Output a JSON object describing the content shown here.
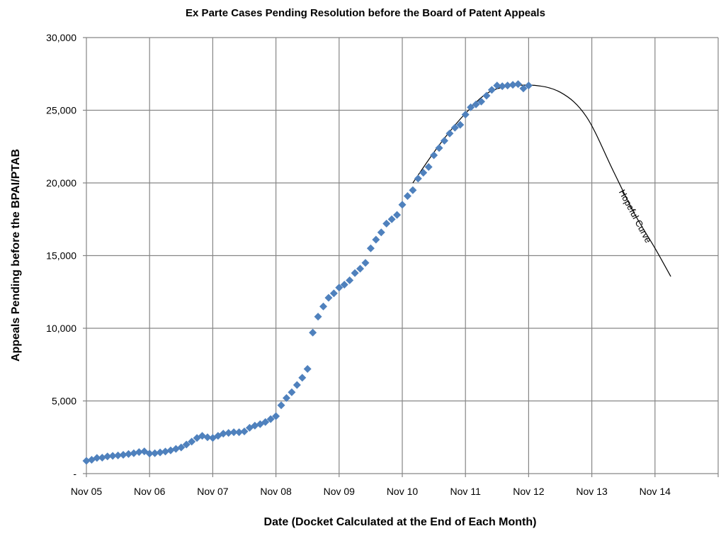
{
  "chart_data": {
    "type": "scatter",
    "title": "Ex Parte Cases Pending Resolution before the Board of Patent Appeals",
    "xlabel": "Date (Docket Calculated at the End of Each Month)",
    "ylabel": "Appeals Pending before the BPAI/PTAB",
    "xlim": [
      "2005-11",
      "2015-11"
    ],
    "ylim": [
      0,
      30000
    ],
    "grid": true,
    "legend": "none",
    "x_tick_labels": [
      "Nov 05",
      "Nov 06",
      "Nov 07",
      "Nov 08",
      "Nov 09",
      "Nov 10",
      "Nov 11",
      "Nov 12",
      "Nov 13",
      "Nov 14"
    ],
    "y_tick_labels": [
      "-",
      "5,000",
      "10,000",
      "15,000",
      "20,000",
      "25,000",
      "30,000"
    ],
    "series": [
      {
        "color": "#4F81BD",
        "marker": "diamond",
        "start": "2005-11",
        "frequency": "monthly",
        "values": [
          880,
          950,
          1080,
          1100,
          1180,
          1220,
          1250,
          1290,
          1350,
          1400,
          1480,
          1530,
          1380,
          1400,
          1460,
          1520,
          1600,
          1700,
          1800,
          2000,
          2200,
          2450,
          2600,
          2500,
          2450,
          2600,
          2750,
          2800,
          2850,
          2850,
          2900,
          3150,
          3300,
          3400,
          3550,
          3750,
          3950,
          4700,
          5200,
          5600,
          6100,
          6600,
          7200,
          9700,
          10800,
          11500,
          12100,
          12400,
          12800,
          13000,
          13300,
          13800,
          14100,
          14500,
          15500,
          16100,
          16600,
          17200,
          17500,
          17800,
          18500,
          19100,
          19500,
          20300,
          20700,
          21100,
          21900,
          22400,
          22900,
          23400,
          23800,
          24000,
          24700,
          25200,
          25400,
          25600,
          26000,
          26400,
          26700,
          26650,
          26700,
          26750,
          26800,
          26500,
          26700
        ]
      },
      {
        "color": "#000000",
        "type": "line",
        "annotation": "Hopeful Curve",
        "points": [
          [
            "2011-01",
            20000
          ],
          [
            "2011-06",
            22600
          ],
          [
            "2011-11",
            24780
          ],
          [
            "2012-04",
            26340
          ],
          [
            "2012-11",
            26730
          ],
          [
            "2013-05",
            26240
          ],
          [
            "2013-10",
            24540
          ],
          [
            "2014-03",
            20880
          ],
          [
            "2014-07",
            17950
          ],
          [
            "2014-11",
            15510
          ],
          [
            "2015-02",
            13560
          ]
        ]
      }
    ]
  }
}
